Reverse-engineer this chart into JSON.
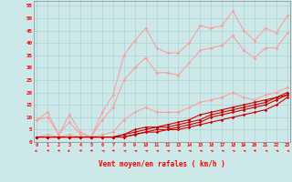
{
  "xlabel": "Vent moyen/en rafales ( km/h )",
  "xlim": [
    -0.3,
    23.3
  ],
  "ylim": [
    0,
    57
  ],
  "yticks": [
    0,
    5,
    10,
    15,
    20,
    25,
    30,
    35,
    40,
    45,
    50,
    55
  ],
  "xticks": [
    0,
    1,
    2,
    3,
    4,
    5,
    6,
    7,
    8,
    9,
    10,
    11,
    12,
    13,
    14,
    15,
    16,
    17,
    18,
    19,
    20,
    21,
    22,
    23
  ],
  "background_color": "#cce8e8",
  "grid_color": "#aacccc",
  "light_lines": [
    [
      9,
      12,
      3,
      11,
      4,
      2,
      12,
      19,
      35,
      41,
      46,
      38,
      36,
      36,
      40,
      47,
      46,
      47,
      53,
      45,
      41,
      46,
      44,
      51
    ],
    [
      9,
      10,
      3,
      8,
      3,
      2,
      9,
      14,
      25,
      30,
      34,
      28,
      28,
      27,
      32,
      37,
      38,
      39,
      43,
      37,
      34,
      38,
      38,
      44
    ],
    [
      2,
      3,
      2,
      3,
      2,
      2,
      3,
      4,
      9,
      12,
      14,
      12,
      12,
      12,
      14,
      16,
      17,
      18,
      20,
      18,
      17,
      19,
      20,
      22
    ]
  ],
  "dark_lines": [
    [
      2,
      2,
      2,
      2,
      2,
      2,
      2,
      2,
      3,
      5,
      6,
      6,
      7,
      8,
      9,
      11,
      12,
      13,
      14,
      15,
      16,
      17,
      18,
      20
    ],
    [
      2,
      2,
      2,
      2,
      2,
      2,
      2,
      2,
      3,
      4,
      5,
      6,
      6,
      7,
      8,
      9,
      11,
      12,
      13,
      14,
      15,
      16,
      18,
      19
    ],
    [
      2,
      2,
      2,
      2,
      2,
      2,
      2,
      2,
      2,
      3,
      4,
      5,
      5,
      6,
      7,
      8,
      10,
      11,
      12,
      13,
      14,
      15,
      17,
      19
    ],
    [
      2,
      2,
      2,
      2,
      2,
      2,
      2,
      2,
      2,
      3,
      4,
      4,
      5,
      5,
      6,
      7,
      8,
      9,
      10,
      11,
      12,
      13,
      15,
      18
    ]
  ],
  "light_color": "#ff9999",
  "dark_color": "#cc0000",
  "arrow_angles": [
    215,
    265,
    265,
    215,
    265,
    265,
    320,
    265,
    320,
    315,
    315,
    315,
    315,
    315,
    315,
    315,
    315,
    315,
    315,
    315,
    265,
    315,
    315,
    315
  ]
}
